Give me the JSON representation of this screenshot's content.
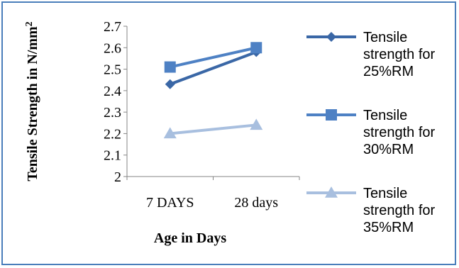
{
  "chart_data": {
    "type": "line",
    "categories": [
      "7 DAYS",
      "28 days"
    ],
    "series": [
      {
        "name": "Tensile strength for 25%RM",
        "values": [
          2.43,
          2.58
        ],
        "color": "#3a67a6",
        "marker": "diamond"
      },
      {
        "name": "Tensile strength for 30%RM",
        "values": [
          2.51,
          2.6
        ],
        "color": "#4e81c4",
        "marker": "square"
      },
      {
        "name": "Tensile strength for 35%RM",
        "values": [
          2.2,
          2.24
        ],
        "color": "#a8bfdf",
        "marker": "triangle"
      }
    ],
    "xlabel": "Age in Days",
    "ylabel": "Tensile Strength in N/mm",
    "ylabel_superscript": "2",
    "ylim": [
      2,
      2.7
    ],
    "yticks": [
      "2",
      "2.1",
      "2.2",
      "2.3",
      "2.4",
      "2.5",
      "2.6",
      "2.7"
    ],
    "grid": false,
    "legend_position": "right"
  }
}
